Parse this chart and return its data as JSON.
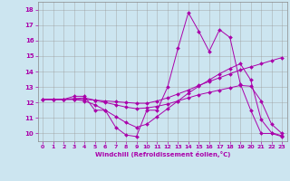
{
  "xlabel": "Windchill (Refroidissement éolien,°C)",
  "bg_color": "#cce5f0",
  "line_color": "#aa00aa",
  "grid_color": "#999999",
  "ylim": [
    9.5,
    18.5
  ],
  "xlim": [
    -0.5,
    23.5
  ],
  "yticks": [
    10,
    11,
    12,
    13,
    14,
    15,
    16,
    17,
    18
  ],
  "xticks": [
    0,
    1,
    2,
    3,
    4,
    5,
    6,
    7,
    8,
    9,
    10,
    11,
    12,
    13,
    14,
    15,
    16,
    17,
    18,
    19,
    20,
    21,
    22,
    23
  ],
  "lines": [
    {
      "x": [
        0,
        1,
        2,
        3,
        4,
        5,
        6,
        7,
        8,
        9,
        10,
        11,
        12,
        13,
        14,
        15,
        16,
        17,
        18,
        19,
        20,
        21,
        22,
        23
      ],
      "y": [
        12.2,
        12.2,
        12.2,
        12.4,
        12.4,
        11.5,
        11.5,
        10.4,
        9.9,
        9.8,
        11.5,
        11.5,
        13.0,
        15.5,
        17.8,
        16.6,
        15.3,
        16.7,
        16.2,
        13.2,
        11.5,
        10.0,
        10.0,
        9.8
      ]
    },
    {
      "x": [
        0,
        1,
        2,
        3,
        4,
        5,
        6,
        7,
        8,
        9,
        10,
        11,
        12,
        13,
        14,
        15,
        16,
        17,
        18,
        19,
        20,
        21,
        22,
        23
      ],
      "y": [
        12.2,
        12.2,
        12.2,
        12.2,
        12.2,
        12.15,
        12.1,
        12.05,
        12.0,
        11.95,
        11.95,
        12.1,
        12.3,
        12.55,
        12.8,
        13.1,
        13.35,
        13.6,
        13.85,
        14.1,
        14.3,
        14.5,
        14.7,
        14.9
      ]
    },
    {
      "x": [
        0,
        1,
        2,
        3,
        4,
        5,
        6,
        7,
        8,
        9,
        10,
        11,
        12,
        13,
        14,
        15,
        16,
        17,
        18,
        19,
        20,
        21,
        22,
        23
      ],
      "y": [
        12.2,
        12.2,
        12.2,
        12.25,
        12.3,
        12.15,
        12.0,
        11.85,
        11.7,
        11.6,
        11.65,
        11.75,
        11.9,
        12.1,
        12.3,
        12.5,
        12.65,
        12.8,
        12.95,
        13.1,
        13.05,
        12.1,
        10.6,
        10.0
      ]
    },
    {
      "x": [
        0,
        1,
        2,
        3,
        4,
        5,
        6,
        7,
        8,
        9,
        10,
        11,
        12,
        13,
        14,
        15,
        16,
        17,
        18,
        19,
        20,
        21,
        22,
        23
      ],
      "y": [
        12.2,
        12.2,
        12.2,
        12.2,
        12.1,
        11.85,
        11.5,
        11.1,
        10.7,
        10.4,
        10.6,
        11.1,
        11.6,
        12.1,
        12.6,
        13.05,
        13.45,
        13.85,
        14.2,
        14.5,
        13.45,
        10.9,
        10.05,
        9.85
      ]
    }
  ]
}
